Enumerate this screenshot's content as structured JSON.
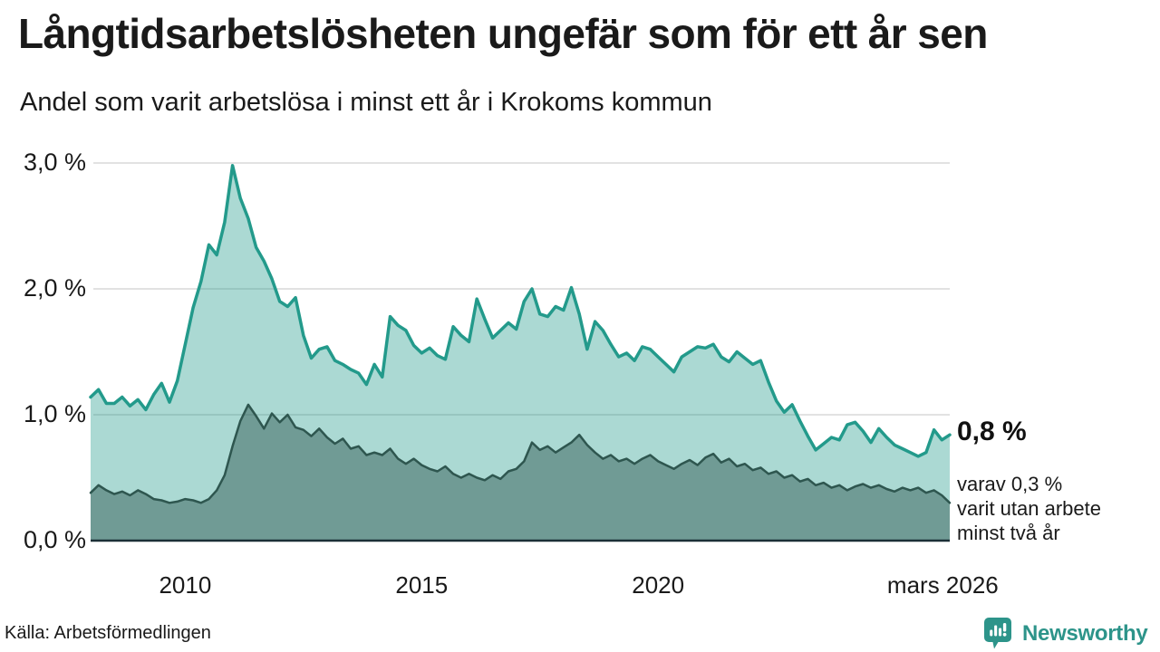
{
  "header": {
    "title": "Långtidsarbetslösheten ungefär som för ett år sen",
    "subtitle": "Andel som varit arbetslösa i minst ett år i Krokoms kommun"
  },
  "chart_data": {
    "type": "area",
    "title": "Långtidsarbetslösheten ungefär som för ett år sen",
    "subtitle": "Andel som varit arbetslösa i minst ett år i Krokoms kommun",
    "unit": "%",
    "x_start": 2008.0,
    "x_end": 2026.1667,
    "ylim": [
      0,
      3.0
    ],
    "grid": true,
    "y_ticks": [
      {
        "label": "0,0 %",
        "v": 0
      },
      {
        "label": "1,0 %",
        "v": 1
      },
      {
        "label": "2,0 %",
        "v": 2
      },
      {
        "label": "3,0 %",
        "v": 3
      }
    ],
    "x_ticks": [
      {
        "label": "2010",
        "x": 2010
      },
      {
        "label": "2015",
        "x": 2015
      },
      {
        "label": "2020",
        "x": 2020
      },
      {
        "label": "mars 2026",
        "x": 2026.02
      }
    ],
    "series": [
      {
        "name": "Andel arbetslösa minst ett år",
        "line_color": "#239a8b",
        "fill_color": "rgba(35,154,139,0.38)",
        "values": [
          1.14,
          1.2,
          1.09,
          1.09,
          1.14,
          1.07,
          1.12,
          1.04,
          1.16,
          1.25,
          1.1,
          1.27,
          1.56,
          1.85,
          2.06,
          2.35,
          2.27,
          2.53,
          2.98,
          2.72,
          2.56,
          2.33,
          2.22,
          2.08,
          1.9,
          1.86,
          1.93,
          1.63,
          1.45,
          1.52,
          1.54,
          1.43,
          1.4,
          1.36,
          1.33,
          1.24,
          1.4,
          1.3,
          1.78,
          1.71,
          1.67,
          1.55,
          1.49,
          1.53,
          1.47,
          1.44,
          1.7,
          1.63,
          1.58,
          1.92,
          1.76,
          1.61,
          1.67,
          1.73,
          1.68,
          1.9,
          2.0,
          1.8,
          1.78,
          1.86,
          1.83,
          2.01,
          1.8,
          1.52,
          1.74,
          1.67,
          1.56,
          1.46,
          1.49,
          1.43,
          1.54,
          1.52,
          1.46,
          1.4,
          1.34,
          1.46,
          1.5,
          1.54,
          1.53,
          1.56,
          1.46,
          1.42,
          1.5,
          1.45,
          1.4,
          1.43,
          1.26,
          1.11,
          1.02,
          1.08,
          0.95,
          0.83,
          0.72,
          0.77,
          0.82,
          0.8,
          0.92,
          0.94,
          0.87,
          0.78,
          0.89,
          0.82,
          0.76,
          0.73,
          0.7,
          0.67,
          0.7,
          0.88,
          0.8,
          0.84
        ]
      },
      {
        "name": "varav arbetslösa minst två år",
        "line_color": "#2e564f",
        "fill_color": "rgba(46,86,79,0.47)",
        "values": [
          0.38,
          0.44,
          0.4,
          0.37,
          0.39,
          0.36,
          0.4,
          0.37,
          0.33,
          0.32,
          0.3,
          0.31,
          0.33,
          0.32,
          0.3,
          0.33,
          0.4,
          0.52,
          0.75,
          0.95,
          1.08,
          0.99,
          0.89,
          1.01,
          0.94,
          1.0,
          0.9,
          0.88,
          0.83,
          0.89,
          0.82,
          0.77,
          0.81,
          0.73,
          0.75,
          0.68,
          0.7,
          0.68,
          0.73,
          0.65,
          0.61,
          0.65,
          0.6,
          0.57,
          0.55,
          0.59,
          0.53,
          0.5,
          0.53,
          0.5,
          0.48,
          0.52,
          0.49,
          0.55,
          0.57,
          0.63,
          0.78,
          0.72,
          0.75,
          0.7,
          0.74,
          0.78,
          0.84,
          0.76,
          0.7,
          0.65,
          0.68,
          0.63,
          0.65,
          0.61,
          0.65,
          0.68,
          0.63,
          0.6,
          0.57,
          0.61,
          0.64,
          0.6,
          0.66,
          0.69,
          0.62,
          0.65,
          0.59,
          0.61,
          0.56,
          0.58,
          0.53,
          0.55,
          0.5,
          0.52,
          0.47,
          0.49,
          0.44,
          0.46,
          0.42,
          0.44,
          0.4,
          0.43,
          0.45,
          0.42,
          0.44,
          0.41,
          0.39,
          0.42,
          0.4,
          0.42,
          0.38,
          0.4,
          0.36,
          0.3
        ]
      }
    ],
    "annotations": {
      "latest_value": "0,8 %",
      "note": "varav 0,3 %\nvarit utan arbete\nminst två år"
    },
    "colors": {
      "grid": "#d8d8d8",
      "baseline": "#1b2f36",
      "text": "#1a1a1a",
      "brand": "#2d948a"
    }
  },
  "footer": {
    "source": "Källa: Arbetsförmedlingen",
    "brand": "Newsworthy"
  }
}
